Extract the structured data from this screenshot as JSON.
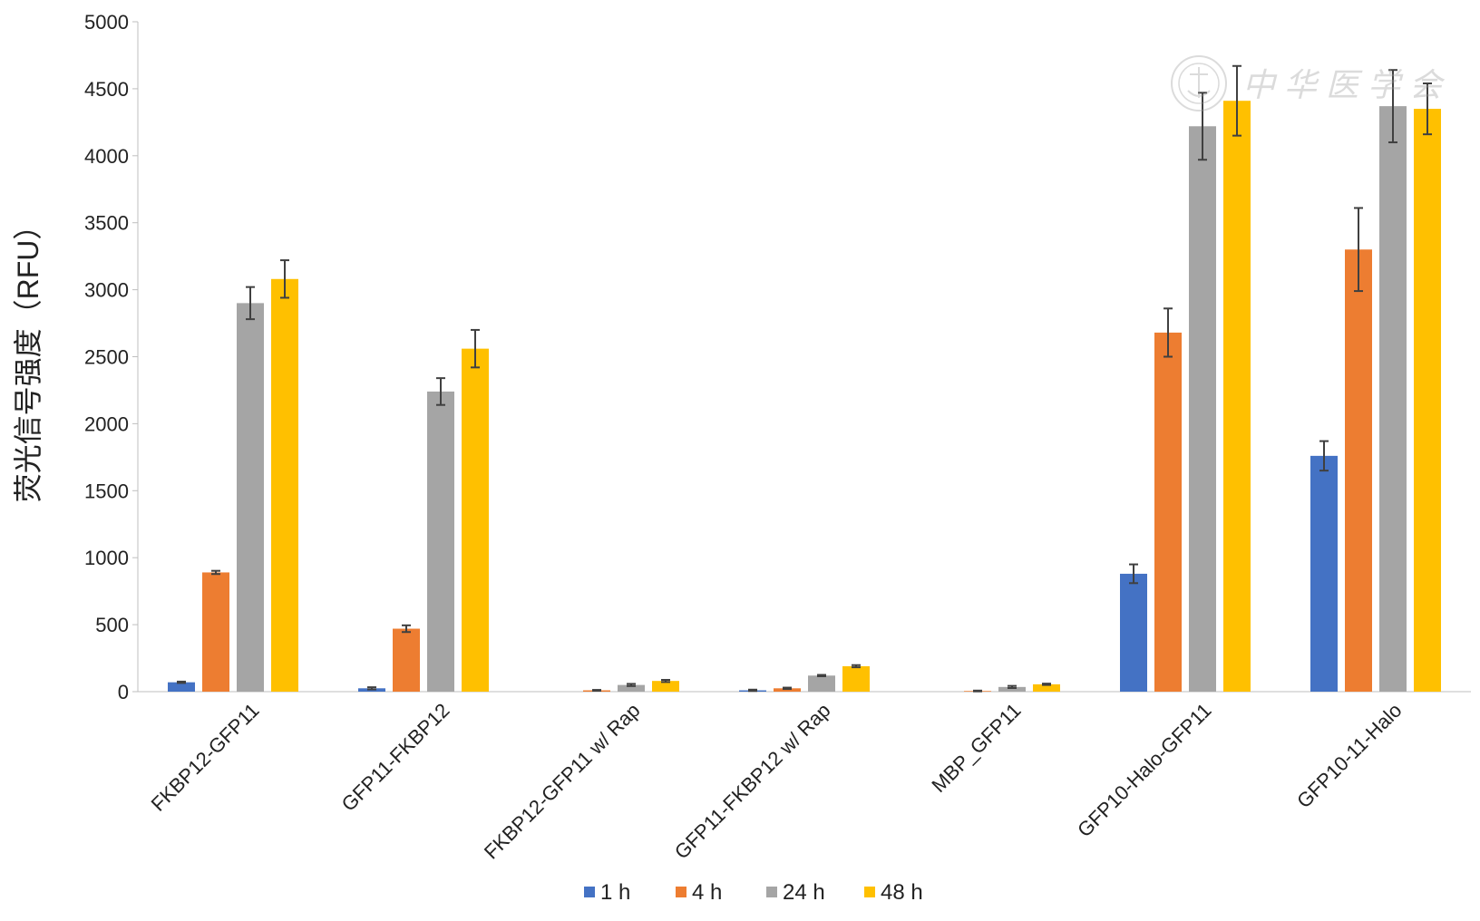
{
  "chart_data": {
    "type": "bar",
    "ylabel": "荧光信号强度（RFU）",
    "ylim": [
      0,
      5000
    ],
    "yticks": [
      0,
      500,
      1000,
      1500,
      2000,
      2500,
      3000,
      3500,
      4000,
      4500,
      5000
    ],
    "categories": [
      "FKBP12-GFP11",
      "GFP11-FKBP12",
      "FKBP12-GFP11 w/ Rap",
      "GFP11-FKBP12 w/ Rap",
      "MBP_GFP11",
      "GFP10-Halo-GFP11",
      "GFP10-11-Halo"
    ],
    "series": [
      {
        "name": "1 h",
        "color": "#4472C4",
        "values": [
          70,
          25,
          0,
          10,
          0,
          880,
          1760
        ],
        "errors": [
          5,
          8,
          0,
          5,
          0,
          70,
          110
        ]
      },
      {
        "name": "4 h",
        "color": "#ED7D31",
        "values": [
          890,
          470,
          10,
          25,
          5,
          2680,
          3300
        ],
        "errors": [
          12,
          25,
          3,
          5,
          3,
          180,
          310
        ]
      },
      {
        "name": "24 h",
        "color": "#A5A5A5",
        "values": [
          2900,
          2240,
          50,
          120,
          35,
          4220,
          4370
        ],
        "errors": [
          120,
          100,
          8,
          5,
          8,
          250,
          270
        ]
      },
      {
        "name": "48 h",
        "color": "#FFC000",
        "values": [
          3080,
          2560,
          80,
          190,
          55,
          4410,
          4350
        ],
        "errors": [
          140,
          140,
          8,
          8,
          5,
          260,
          190
        ]
      }
    ],
    "legend_position": "bottom",
    "grid": false,
    "error_bar_color": "#404040"
  },
  "watermark": {
    "text": "中华医学会",
    "type": "logo-seal"
  }
}
